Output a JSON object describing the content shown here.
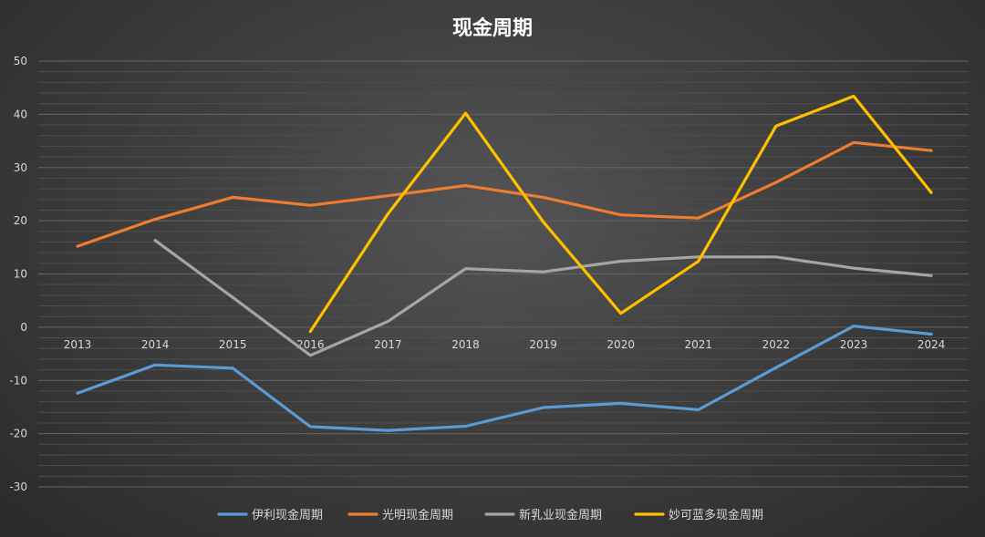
{
  "chart_data": {
    "type": "line",
    "title": "现金周期",
    "categories": [
      "2013",
      "2014",
      "2015",
      "2016",
      "2017",
      "2018",
      "2019",
      "2020",
      "2021",
      "2022",
      "2023",
      "2024"
    ],
    "ylim": [
      -30,
      50
    ],
    "yticks": [
      -30,
      -20,
      -10,
      0,
      10,
      20,
      30,
      40,
      50
    ],
    "grid": true,
    "legend_position": "bottom",
    "series": [
      {
        "name": "伊利现金周期",
        "color": "#5b9bd5",
        "values": [
          -12.4,
          -7.1,
          -7.7,
          -18.7,
          -19.4,
          -18.6,
          -15.1,
          -14.3,
          -15.5,
          -7.6,
          0.2,
          -1.3
        ]
      },
      {
        "name": "光明现金周期",
        "color": "#ed7d31",
        "values": [
          15.2,
          20.3,
          24.4,
          22.9,
          24.7,
          26.6,
          24.4,
          21.1,
          20.5,
          27.2,
          34.7,
          33.2
        ]
      },
      {
        "name": "新乳业现金周期",
        "color": "#a5a5a5",
        "values": [
          null,
          16.3,
          5.6,
          -5.3,
          1.1,
          11.0,
          10.4,
          12.4,
          13.2,
          13.2,
          11.1,
          9.7
        ]
      },
      {
        "name": "妙可蓝多现金周期",
        "color": "#ffc000",
        "values": [
          null,
          null,
          null,
          -0.8,
          21.3,
          40.2,
          19.8,
          2.6,
          12.4,
          37.8,
          43.4,
          25.3
        ]
      }
    ]
  }
}
